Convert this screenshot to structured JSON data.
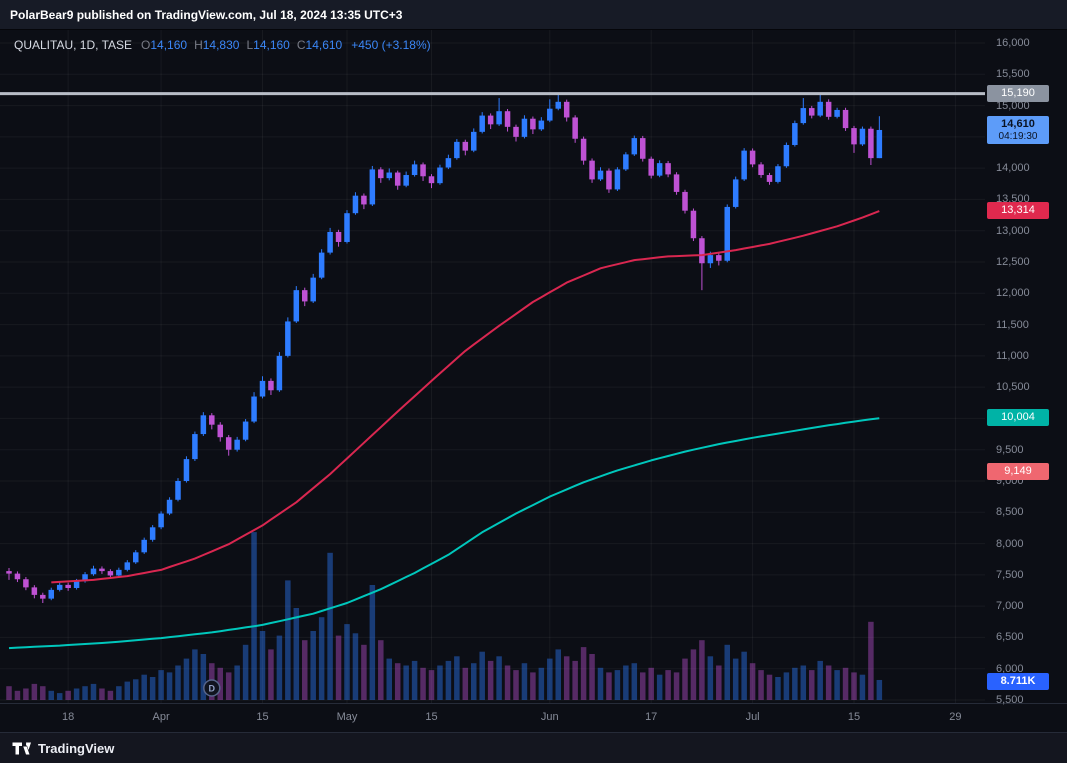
{
  "header": {
    "publish_text": "PolarBear9 published on TradingView.com, Jul 18, 2024 13:35 UTC+3"
  },
  "legend": {
    "symbol_text": "QUALITAU, 1D, TASE",
    "o_label": "O",
    "o_value": "14,160",
    "h_label": "H",
    "h_value": "14,830",
    "l_label": "L",
    "l_value": "14,160",
    "c_label": "C",
    "c_value": "14,610",
    "change_text": "+450 (+3.18%)"
  },
  "badges": {
    "hline": "15,190",
    "last_price": "14,610",
    "countdown": "04:19:30",
    "ma_red": "13,314",
    "ma_teal": "10,004",
    "extra": "9,149",
    "volume": "8.711K"
  },
  "marker": {
    "label": "D",
    "index": 24
  },
  "footer": {
    "brand": "TradingView"
  },
  "colors": {
    "background": "#0c0e15",
    "up": "#2e7cff",
    "down": "#bf52d4",
    "ma_red": "#d92750",
    "ma_teal": "#00c7bc",
    "hline": "#b8bdc6",
    "grid": "rgba(255,255,255,0.05)",
    "axis_text": "#868b98",
    "badge_gray_bg": "#8b93a0",
    "badge_blue_bg": "#5d9cf9",
    "badge_red_bg": "#e0294e",
    "badge_teal_bg": "#00b3a6",
    "badge_pink_bg": "#ef6770",
    "badge_volume_bg": "#2962ff"
  },
  "chart_data": {
    "type": "candlestick",
    "symbol": "QUALITAU",
    "interval": "1D",
    "exchange": "TASE",
    "title": "QUALITAU, 1D, TASE",
    "last_ohlc": {
      "open": 14160,
      "high": 14830,
      "low": 14160,
      "close": 14610,
      "change": 450,
      "change_pct": 3.18
    },
    "last_countdown": "04:19:30",
    "volume_last_display": "8.711K",
    "volume_unit": "K",
    "horizontal_line": 15190,
    "extra_level": 9149,
    "y_axis": {
      "min": 5500,
      "max": 16000,
      "step": 500
    },
    "x_ticks": [
      {
        "label": "18",
        "i": 7
      },
      {
        "label": "Apr",
        "i": 18
      },
      {
        "label": "15",
        "i": 30
      },
      {
        "label": "May",
        "i": 40
      },
      {
        "label": "15",
        "i": 50
      },
      {
        "label": "Jun",
        "i": 64
      },
      {
        "label": "17",
        "i": 76
      },
      {
        "label": "Jul",
        "i": 88
      },
      {
        "label": "15",
        "i": 100
      },
      {
        "label": "29",
        "i": 112
      }
    ],
    "ma_red": {
      "name": "red-moving-average",
      "last": 13314,
      "points": [
        [
          5,
          7380
        ],
        [
          10,
          7420
        ],
        [
          14,
          7480
        ],
        [
          18,
          7580
        ],
        [
          22,
          7760
        ],
        [
          26,
          7990
        ],
        [
          30,
          8290
        ],
        [
          34,
          8660
        ],
        [
          38,
          9110
        ],
        [
          42,
          9610
        ],
        [
          46,
          10110
        ],
        [
          50,
          10600
        ],
        [
          54,
          11080
        ],
        [
          58,
          11480
        ],
        [
          62,
          11860
        ],
        [
          66,
          12170
        ],
        [
          70,
          12400
        ],
        [
          74,
          12530
        ],
        [
          78,
          12590
        ],
        [
          82,
          12610
        ],
        [
          86,
          12690
        ],
        [
          90,
          12790
        ],
        [
          94,
          12920
        ],
        [
          98,
          13070
        ],
        [
          101,
          13210
        ],
        [
          103,
          13314
        ]
      ]
    },
    "ma_teal": {
      "name": "teal-moving-average",
      "last": 10004,
      "points": [
        [
          0,
          6330
        ],
        [
          6,
          6370
        ],
        [
          12,
          6420
        ],
        [
          18,
          6490
        ],
        [
          24,
          6580
        ],
        [
          30,
          6700
        ],
        [
          36,
          6880
        ],
        [
          40,
          7050
        ],
        [
          44,
          7270
        ],
        [
          48,
          7530
        ],
        [
          52,
          7820
        ],
        [
          56,
          8180
        ],
        [
          60,
          8480
        ],
        [
          64,
          8750
        ],
        [
          68,
          8980
        ],
        [
          72,
          9170
        ],
        [
          76,
          9330
        ],
        [
          80,
          9470
        ],
        [
          84,
          9590
        ],
        [
          88,
          9690
        ],
        [
          92,
          9780
        ],
        [
          96,
          9870
        ],
        [
          100,
          9950
        ],
        [
          103,
          10004
        ]
      ]
    },
    "candles": [
      [
        7560,
        7610,
        7420,
        7520,
        6
      ],
      [
        7520,
        7555,
        7385,
        7430,
        4
      ],
      [
        7430,
        7465,
        7255,
        7300,
        5
      ],
      [
        7300,
        7335,
        7125,
        7180,
        7
      ],
      [
        7180,
        7215,
        7050,
        7120,
        6
      ],
      [
        7120,
        7295,
        7095,
        7260,
        4
      ],
      [
        7260,
        7385,
        7235,
        7340,
        3
      ],
      [
        7340,
        7375,
        7245,
        7290,
        4
      ],
      [
        7290,
        7435,
        7265,
        7400,
        5
      ],
      [
        7400,
        7545,
        7375,
        7510,
        6
      ],
      [
        7510,
        7645,
        7485,
        7600,
        7
      ],
      [
        7600,
        7635,
        7515,
        7560,
        5
      ],
      [
        7560,
        7590,
        7445,
        7490,
        4
      ],
      [
        7490,
        7615,
        7465,
        7580,
        6
      ],
      [
        7580,
        7735,
        7555,
        7700,
        8
      ],
      [
        7700,
        7895,
        7675,
        7860,
        9
      ],
      [
        7860,
        8095,
        7835,
        8060,
        11
      ],
      [
        8060,
        8295,
        8030,
        8260,
        10
      ],
      [
        8260,
        8515,
        8230,
        8480,
        13
      ],
      [
        8480,
        8740,
        8455,
        8700,
        12
      ],
      [
        8700,
        9045,
        8675,
        9000,
        15
      ],
      [
        9000,
        9395,
        8975,
        9350,
        18
      ],
      [
        9350,
        9790,
        9320,
        9750,
        22
      ],
      [
        9750,
        10100,
        9720,
        10050,
        20
      ],
      [
        10050,
        10085,
        9825,
        9900,
        16
      ],
      [
        9900,
        9940,
        9630,
        9700,
        14
      ],
      [
        9700,
        9735,
        9405,
        9500,
        12
      ],
      [
        9500,
        9705,
        9470,
        9660,
        15
      ],
      [
        9660,
        9990,
        9635,
        9950,
        24
      ],
      [
        9950,
        10420,
        9925,
        10350,
        73
      ],
      [
        10350,
        10675,
        10320,
        10600,
        30
      ],
      [
        10600,
        10640,
        10375,
        10450,
        22
      ],
      [
        10450,
        11060,
        10425,
        11000,
        28
      ],
      [
        11000,
        11615,
        10975,
        11550,
        52
      ],
      [
        11550,
        12115,
        11525,
        12050,
        40
      ],
      [
        12050,
        12090,
        11795,
        11870,
        26
      ],
      [
        11870,
        12310,
        11845,
        12250,
        30
      ],
      [
        12250,
        12705,
        12225,
        12650,
        36
      ],
      [
        12650,
        13045,
        12620,
        12980,
        64
      ],
      [
        12980,
        13015,
        12745,
        12820,
        28
      ],
      [
        12820,
        13330,
        12795,
        13280,
        33
      ],
      [
        13280,
        13615,
        13255,
        13560,
        29
      ],
      [
        13560,
        13595,
        13345,
        13420,
        24
      ],
      [
        13420,
        14035,
        13395,
        13980,
        50
      ],
      [
        13980,
        14015,
        13765,
        13840,
        26
      ],
      [
        13840,
        13995,
        13805,
        13930,
        18
      ],
      [
        13930,
        13960,
        13655,
        13720,
        16
      ],
      [
        13720,
        13945,
        13695,
        13890,
        15
      ],
      [
        13890,
        14120,
        13865,
        14060,
        17
      ],
      [
        14060,
        14090,
        13795,
        13870,
        14
      ],
      [
        13870,
        13905,
        13680,
        13760,
        13
      ],
      [
        13760,
        14055,
        13735,
        14010,
        15
      ],
      [
        14010,
        14215,
        13985,
        14160,
        17
      ],
      [
        14160,
        14465,
        14135,
        14420,
        19
      ],
      [
        14420,
        14455,
        14205,
        14280,
        14
      ],
      [
        14280,
        14635,
        14255,
        14580,
        16
      ],
      [
        14580,
        14895,
        14555,
        14840,
        21
      ],
      [
        14840,
        14875,
        14625,
        14700,
        17
      ],
      [
        14700,
        15120,
        14675,
        14910,
        19
      ],
      [
        14910,
        14945,
        14585,
        14660,
        15
      ],
      [
        14660,
        14695,
        14425,
        14500,
        13
      ],
      [
        14500,
        14845,
        14475,
        14790,
        16
      ],
      [
        14790,
        14825,
        14545,
        14620,
        12
      ],
      [
        14620,
        14815,
        14595,
        14760,
        14
      ],
      [
        14760,
        15100,
        14735,
        14950,
        18
      ],
      [
        14950,
        15190,
        14925,
        15060,
        22
      ],
      [
        15060,
        15095,
        14745,
        14810,
        19
      ],
      [
        14810,
        14845,
        14405,
        14470,
        17
      ],
      [
        14470,
        14505,
        14055,
        14120,
        23
      ],
      [
        14120,
        14155,
        13765,
        13820,
        20
      ],
      [
        13820,
        14015,
        13795,
        13960,
        14
      ],
      [
        13960,
        13995,
        13605,
        13660,
        12
      ],
      [
        13660,
        14015,
        13635,
        13980,
        13
      ],
      [
        13980,
        14255,
        13955,
        14220,
        15
      ],
      [
        14220,
        14520,
        14195,
        14480,
        16
      ],
      [
        14480,
        14515,
        14105,
        14150,
        12
      ],
      [
        14150,
        14185,
        13835,
        13880,
        14
      ],
      [
        13880,
        14125,
        13855,
        14080,
        11
      ],
      [
        14080,
        14115,
        13855,
        13900,
        13
      ],
      [
        13900,
        13935,
        13575,
        13620,
        12
      ],
      [
        13620,
        13655,
        13275,
        13320,
        18
      ],
      [
        13320,
        13355,
        12835,
        12880,
        22
      ],
      [
        12880,
        12915,
        12050,
        12480,
        26
      ],
      [
        12480,
        12665,
        12405,
        12610,
        19
      ],
      [
        12610,
        12645,
        12445,
        12520,
        15
      ],
      [
        12520,
        13420,
        12495,
        13380,
        24
      ],
      [
        13380,
        13865,
        13355,
        13820,
        18
      ],
      [
        13820,
        14320,
        13795,
        14280,
        21
      ],
      [
        14280,
        14315,
        14015,
        14060,
        16
      ],
      [
        14060,
        14095,
        13845,
        13890,
        13
      ],
      [
        13890,
        13925,
        13735,
        13780,
        11
      ],
      [
        13780,
        14065,
        13755,
        14030,
        10
      ],
      [
        14030,
        14410,
        14005,
        14370,
        12
      ],
      [
        14370,
        14760,
        14345,
        14720,
        14
      ],
      [
        14720,
        15120,
        14695,
        14960,
        15
      ],
      [
        14960,
        14995,
        14795,
        14840,
        13
      ],
      [
        14840,
        15190,
        14815,
        15060,
        17
      ],
      [
        15060,
        15100,
        14775,
        14820,
        15
      ],
      [
        14820,
        14965,
        14795,
        14930,
        13
      ],
      [
        14930,
        14965,
        14595,
        14640,
        14
      ],
      [
        14640,
        14675,
        14245,
        14380,
        12
      ],
      [
        14380,
        14665,
        14355,
        14630,
        11
      ],
      [
        14630,
        14665,
        14050,
        14160,
        34
      ],
      [
        14160,
        14830,
        14160,
        14610,
        8.711
      ]
    ]
  }
}
